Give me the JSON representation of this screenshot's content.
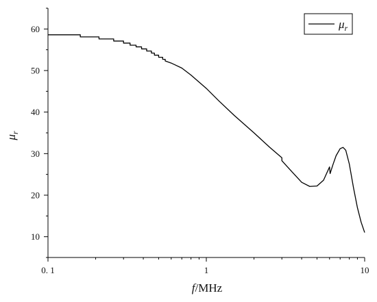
{
  "chart_data": {
    "type": "line",
    "x_scale": "log",
    "xlim": [
      0.1,
      10
    ],
    "ylim": [
      5,
      65
    ],
    "grid": false,
    "legend_position": "top-right",
    "x_ticks": [
      0.1,
      1,
      10
    ],
    "x_tick_labels": [
      "0. 1",
      "1",
      "10"
    ],
    "y_ticks": [
      10,
      20,
      30,
      40,
      50,
      60
    ],
    "y_tick_labels": [
      "10",
      "20",
      "30",
      "40",
      "50",
      "60"
    ],
    "xlabel": {
      "symbol": "f",
      "unit": "/MHz"
    },
    "ylabel": {
      "symbol": "μ",
      "subscript": "r"
    },
    "series": [
      {
        "name": {
          "symbol": "μ",
          "subscript": "r"
        },
        "color": "#000000",
        "points": [
          [
            0.1,
            58.6
          ],
          [
            0.16,
            58.6
          ],
          [
            0.16,
            58.1
          ],
          [
            0.21,
            58.1
          ],
          [
            0.21,
            57.6
          ],
          [
            0.26,
            57.6
          ],
          [
            0.26,
            57.1
          ],
          [
            0.3,
            57.1
          ],
          [
            0.3,
            56.6
          ],
          [
            0.33,
            56.6
          ],
          [
            0.33,
            56.1
          ],
          [
            0.36,
            56.1
          ],
          [
            0.36,
            55.7
          ],
          [
            0.39,
            55.7
          ],
          [
            0.39,
            55.2
          ],
          [
            0.42,
            55.2
          ],
          [
            0.42,
            54.7
          ],
          [
            0.45,
            54.7
          ],
          [
            0.45,
            54.2
          ],
          [
            0.47,
            54.2
          ],
          [
            0.47,
            53.7
          ],
          [
            0.5,
            53.7
          ],
          [
            0.5,
            53.2
          ],
          [
            0.53,
            53.2
          ],
          [
            0.53,
            52.7
          ],
          [
            0.55,
            52.7
          ],
          [
            0.55,
            52.3
          ],
          [
            0.6,
            51.8
          ],
          [
            0.7,
            50.6
          ],
          [
            0.8,
            48.9
          ],
          [
            1.0,
            45.7
          ],
          [
            1.2,
            42.7
          ],
          [
            1.5,
            39.2
          ],
          [
            2.0,
            35.0
          ],
          [
            2.5,
            31.6
          ],
          [
            3.0,
            29.0
          ],
          [
            3.0,
            28.3
          ],
          [
            3.5,
            25.5
          ],
          [
            4.0,
            23.1
          ],
          [
            4.5,
            22.1
          ],
          [
            5.0,
            22.2
          ],
          [
            5.5,
            23.6
          ],
          [
            6.0,
            26.8
          ],
          [
            6.05,
            25.2
          ],
          [
            6.3,
            27.3
          ],
          [
            6.6,
            29.5
          ],
          [
            7.0,
            31.2
          ],
          [
            7.3,
            31.5
          ],
          [
            7.6,
            30.8
          ],
          [
            8.0,
            27.5
          ],
          [
            8.5,
            21.8
          ],
          [
            9.0,
            17.0
          ],
          [
            9.5,
            13.5
          ],
          [
            10.0,
            11.0
          ]
        ]
      }
    ]
  }
}
